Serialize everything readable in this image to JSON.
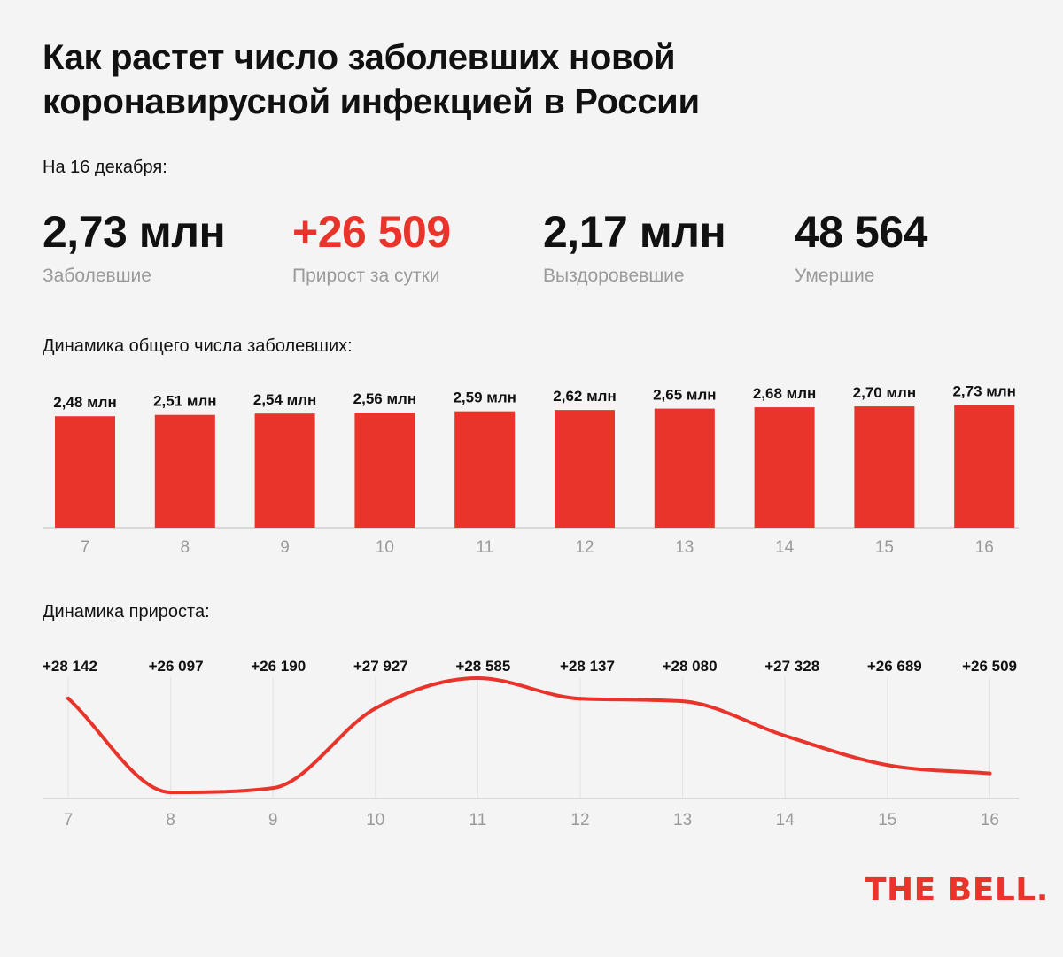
{
  "title": "Как растет число заболевших новой коронавирусной инфекцией в России",
  "as_of": "На 16 декабря:",
  "stats": [
    {
      "value": "2,73 млн",
      "label": "Заболевшие"
    },
    {
      "value": "+26 509",
      "label": "Прирост за сутки"
    },
    {
      "value": "2,17 млн",
      "label": "Выздоровевшие"
    },
    {
      "value": "48 564",
      "label": "Умершие"
    }
  ],
  "colors": {
    "accent": "#e8342a",
    "muted": "#9a9a9a",
    "axis": "#cfcfcf",
    "grid": "#e2e2e2"
  },
  "brand": "THE BELL.",
  "chart_data": [
    {
      "type": "bar",
      "title": "Динамика общего числа заболевших:",
      "categories": [
        "7",
        "8",
        "9",
        "10",
        "11",
        "12",
        "13",
        "14",
        "15",
        "16"
      ],
      "values": [
        2.48,
        2.51,
        2.54,
        2.56,
        2.59,
        2.62,
        2.65,
        2.68,
        2.7,
        2.73
      ],
      "labels": [
        "2,48 млн",
        "2,51 млн",
        "2,54 млн",
        "2,56 млн",
        "2,59 млн",
        "2,62 млн",
        "2,65 млн",
        "2,68 млн",
        "2,70 млн",
        "2,73 млн"
      ],
      "ylim": [
        0,
        2.8
      ],
      "grid": false
    },
    {
      "type": "line",
      "title": "Динамика прироста:",
      "categories": [
        "7",
        "8",
        "9",
        "10",
        "11",
        "12",
        "13",
        "14",
        "15",
        "16"
      ],
      "values": [
        28142,
        26097,
        26190,
        27927,
        28585,
        28137,
        28080,
        27328,
        26689,
        26509
      ],
      "labels": [
        "+28 142",
        "+26 097",
        "+26 190",
        "+27 927",
        "+28 585",
        "+28 137",
        "+28 080",
        "+27 328",
        "+26 689",
        "+26 509"
      ],
      "ylim": [
        26000,
        28700
      ],
      "grid": true
    }
  ]
}
